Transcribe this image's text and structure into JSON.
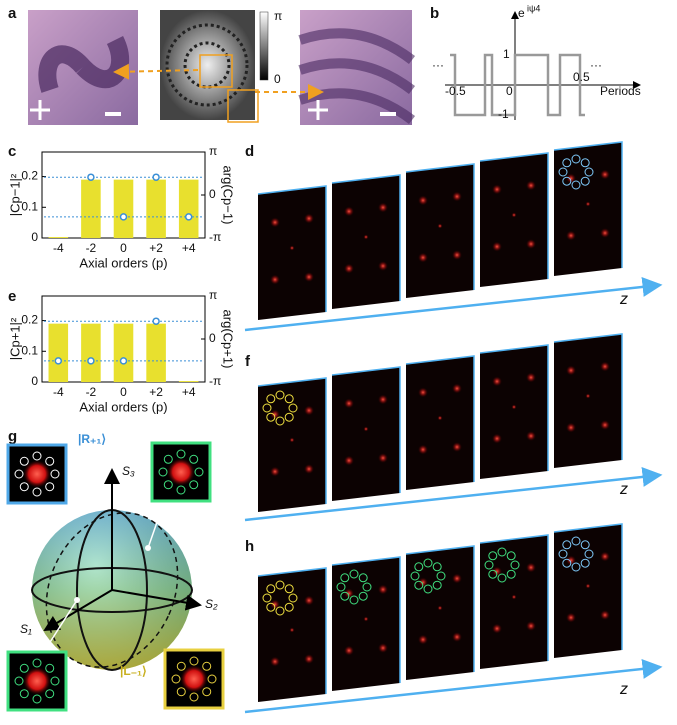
{
  "panel_labels": {
    "a": "a",
    "b": "b",
    "c": "c",
    "d": "d",
    "e": "e",
    "f": "f",
    "g": "g",
    "h": "h"
  },
  "panel_a": {
    "colorbar_max": "π",
    "colorbar_min": "0"
  },
  "panel_b": {
    "ylabel_base": "e",
    "ylabel_exponent": "iψ4",
    "xlabel": "Periods",
    "ytick_top": "1",
    "ytick_bottom": "-1",
    "xtick_left": "-0.5",
    "xtick_mid": "0",
    "xtick_right": "0.5",
    "ellipsis_left": "···",
    "ellipsis_right": "···"
  },
  "chart_data": [
    {
      "type": "bar",
      "categories": [
        "-4",
        "-2",
        "0",
        "+2",
        "+4"
      ],
      "xlabel": "Axial orders (p)",
      "ylabel": "|Cp−1|²",
      "y2label": "arg(Cp−1)",
      "ylim": [
        0,
        0.28
      ],
      "yticks": [
        0,
        0.1,
        0.2
      ],
      "y2lim": [
        -3.1416,
        3.1416
      ],
      "y2ticks": [
        {
          "value": 3.1416,
          "label": "π"
        },
        0,
        {
          "value": -3.1416,
          "label": "-π"
        }
      ],
      "series": [
        {
          "type": "bar",
          "color": "#e8e02e",
          "values": [
            0.003,
            0.19,
            0.19,
            0.19,
            0.19
          ]
        },
        {
          "type": "scatter",
          "axis": "y2",
          "color": "#3a8fd6",
          "values": [
            null,
            1.3,
            -1.6,
            1.3,
            -1.6
          ]
        }
      ]
    },
    {
      "type": "bar",
      "categories": [
        "-4",
        "-2",
        "0",
        "+2",
        "+4"
      ],
      "xlabel": "Axial orders (p)",
      "ylabel": "|Cp+1|²",
      "y2label": "arg(Cp+1)",
      "ylim": [
        0,
        0.28
      ],
      "yticks": [
        0,
        0.1,
        0.2
      ],
      "y2lim": [
        -3.1416,
        3.1416
      ],
      "y2ticks": [
        {
          "value": 3.1416,
          "label": "π"
        },
        0,
        {
          "value": -3.1416,
          "label": "-π"
        }
      ],
      "series": [
        {
          "type": "bar",
          "color": "#e8e02e",
          "values": [
            0.19,
            0.19,
            0.19,
            0.19,
            0.003
          ]
        },
        {
          "type": "scatter",
          "axis": "y2",
          "color": "#3a8fd6",
          "values": [
            -1.6,
            -1.6,
            -1.6,
            1.3,
            null
          ]
        }
      ]
    }
  ],
  "panel_d": {
    "axis_label": "z"
  },
  "panel_f": {
    "axis_label": "z"
  },
  "panel_h": {
    "axis_label": "z"
  },
  "panel_g": {
    "s1": "S₁",
    "s2": "S₂",
    "s3": "S₃",
    "state_r": "|R₊₁⟩",
    "state_l": "|L₋₁⟩"
  }
}
